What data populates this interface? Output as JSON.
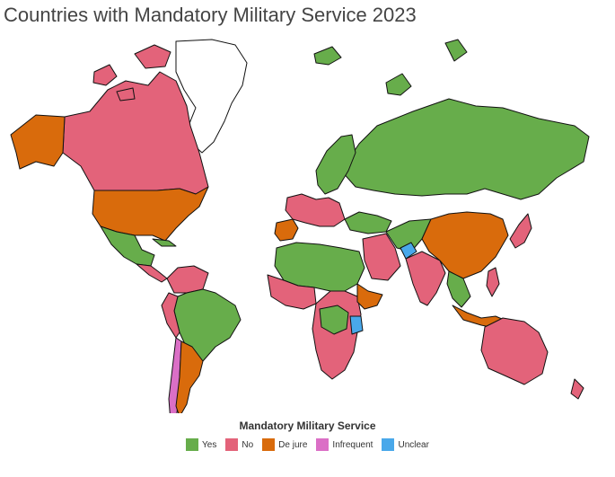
{
  "title": "Countries with Mandatory Military Service 2023",
  "legend": {
    "title": "Mandatory Military Service",
    "items": [
      {
        "key": "yes",
        "label": "Yes",
        "color": "#67ad4b"
      },
      {
        "key": "no",
        "label": "No",
        "color": "#e3637a"
      },
      {
        "key": "dejure",
        "label": "De jure",
        "color": "#d96b0c"
      },
      {
        "key": "infrequent",
        "label": "Infrequent",
        "color": "#db6fc6"
      },
      {
        "key": "unclear",
        "label": "Unclear",
        "color": "#49a8ea"
      }
    ]
  }
}
